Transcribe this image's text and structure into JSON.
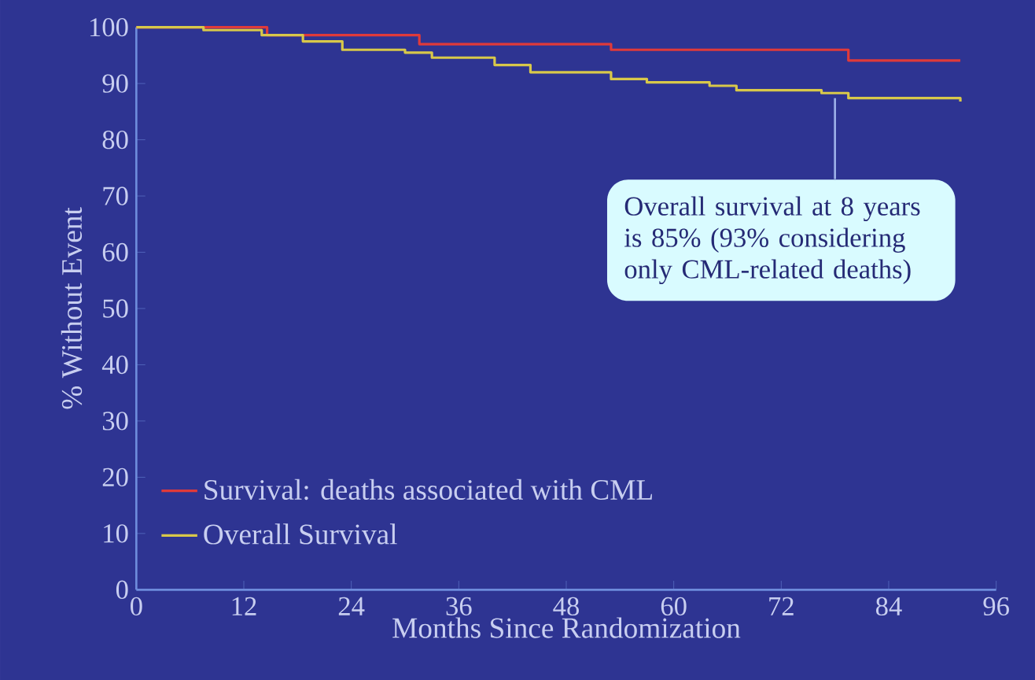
{
  "chart_data": {
    "type": "step",
    "xlabel": "Months Since Randomization",
    "ylabel": "% Without Event",
    "xlim": [
      0,
      96
    ],
    "xticks": [
      0,
      12,
      24,
      36,
      48,
      60,
      72,
      84,
      96
    ],
    "ylim": [
      0,
      100
    ],
    "yticks": [
      0,
      10,
      20,
      30,
      40,
      50,
      60,
      70,
      80,
      90,
      100
    ],
    "series": [
      {
        "name": "Survival: deaths associated with CML",
        "color": "#e03a3a",
        "x": [
          0,
          14.6,
          31.6,
          53,
          79.5,
          92
        ],
        "values": [
          100,
          98.6,
          97,
          96,
          94.1,
          94.1
        ]
      },
      {
        "name": "Overall Survival",
        "color": "#d8c84a",
        "x": [
          0,
          7.5,
          14,
          18.6,
          23,
          30,
          33,
          40,
          44,
          53,
          57,
          64,
          67,
          76.5,
          79.5,
          92
        ],
        "values": [
          100,
          99.5,
          98.6,
          97.5,
          96,
          95.5,
          94.6,
          93.3,
          92,
          90.8,
          90.2,
          89.6,
          88.8,
          88.3,
          87.4,
          86.8
        ]
      }
    ],
    "annotations": [
      {
        "text": "Overall survival at 8 years is 85% (93% considering only CML-related deaths)",
        "x": 78,
        "y": 87.4
      }
    ],
    "legend": "bottom left",
    "marker": "none",
    "line_style": "solid",
    "grid": false
  }
}
